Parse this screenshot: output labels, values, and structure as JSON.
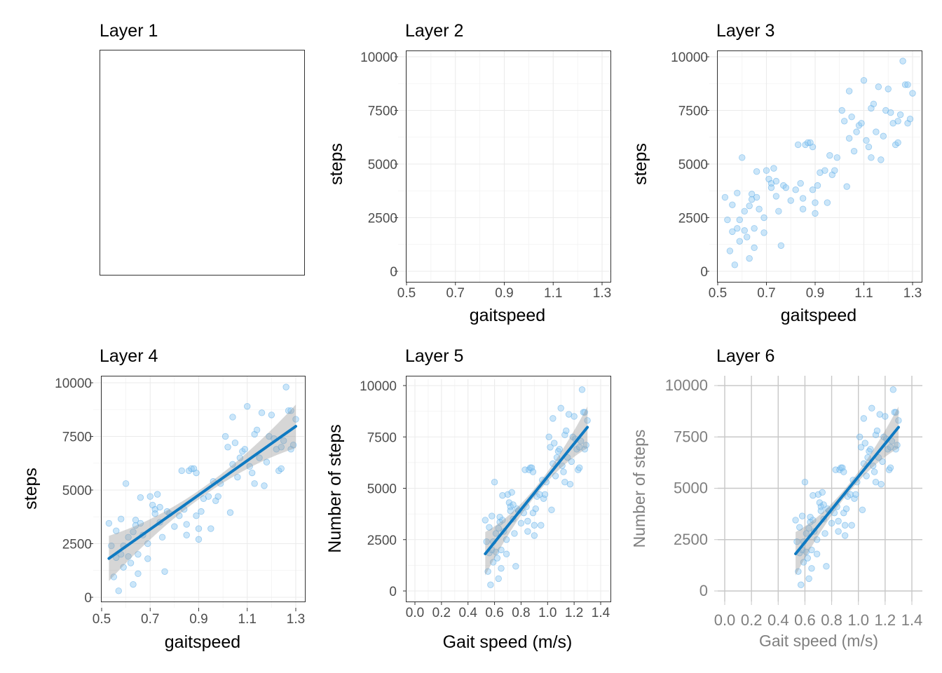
{
  "chart_data": [
    {
      "type": "empty",
      "title": "Layer 1"
    },
    {
      "type": "scatter",
      "title": "Layer 2",
      "xlabel": "gaitspeed",
      "ylabel": "steps",
      "xlim": [
        0.5,
        1.3
      ],
      "ylim": [
        0,
        10000
      ],
      "xticks": [
        "0.5",
        "0.7",
        "0.9",
        "1.1",
        "1.3"
      ],
      "yticks": [
        "0",
        "2500",
        "5000",
        "7500",
        "10000"
      ],
      "show_points": false,
      "show_fit": false,
      "grid": true
    },
    {
      "type": "scatter",
      "title": "Layer 3",
      "xlabel": "gaitspeed",
      "ylabel": "steps",
      "xlim": [
        0.5,
        1.3
      ],
      "ylim": [
        0,
        10000
      ],
      "xticks": [
        "0.5",
        "0.7",
        "0.9",
        "1.1",
        "1.3"
      ],
      "yticks": [
        "0",
        "2500",
        "5000",
        "7500",
        "10000"
      ],
      "show_points": true,
      "show_fit": false,
      "grid": true
    },
    {
      "type": "scatter",
      "title": "Layer 4",
      "xlabel": "gaitspeed",
      "ylabel": "steps",
      "xlim": [
        0.5,
        1.3
      ],
      "ylim": [
        0,
        10000
      ],
      "xticks": [
        "0.5",
        "0.7",
        "0.9",
        "1.1",
        "1.3"
      ],
      "yticks": [
        "0",
        "2500",
        "5000",
        "7500",
        "10000"
      ],
      "show_points": true,
      "show_fit": true,
      "grid": true
    },
    {
      "type": "scatter",
      "title": "Layer 5",
      "xlabel": "Gait speed (m/s)",
      "ylabel": "Number of steps",
      "xlim": [
        0.0,
        1.4
      ],
      "ylim": [
        0,
        10000
      ],
      "xticks": [
        "0.0",
        "0.2",
        "0.4",
        "0.6",
        "0.8",
        "1.0",
        "1.2",
        "1.4"
      ],
      "yticks": [
        "0",
        "2500",
        "5000",
        "7500",
        "10000"
      ],
      "show_points": true,
      "show_fit": true,
      "grid": true
    },
    {
      "type": "scatter",
      "title": "Layer 6",
      "xlabel": "Gait speed (m/s)",
      "ylabel": "Number of steps",
      "xlim": [
        0.0,
        1.4
      ],
      "ylim": [
        0,
        10000
      ],
      "xticks": [
        "0.0",
        "0.2",
        "0.4",
        "0.6",
        "0.8",
        "1.0",
        "1.2",
        "1.4"
      ],
      "yticks": [
        "0",
        "2500",
        "5000",
        "7500",
        "10000"
      ],
      "show_points": true,
      "show_fit": true,
      "grid": true
    }
  ],
  "points": {
    "x": [
      0.53,
      0.54,
      0.55,
      0.56,
      0.56,
      0.57,
      0.58,
      0.58,
      0.59,
      0.59,
      0.6,
      0.61,
      0.61,
      0.62,
      0.63,
      0.63,
      0.64,
      0.64,
      0.65,
      0.65,
      0.66,
      0.66,
      0.67,
      0.69,
      0.69,
      0.7,
      0.71,
      0.72,
      0.72,
      0.73,
      0.74,
      0.74,
      0.75,
      0.76,
      0.77,
      0.78,
      0.8,
      0.82,
      0.83,
      0.84,
      0.85,
      0.85,
      0.86,
      0.87,
      0.88,
      0.89,
      0.89,
      0.9,
      0.9,
      0.91,
      0.92,
      0.94,
      0.95,
      0.96,
      0.97,
      0.98,
      0.99,
      1.01,
      1.02,
      1.03,
      1.04,
      1.04,
      1.05,
      1.06,
      1.07,
      1.08,
      1.09,
      1.1,
      1.11,
      1.12,
      1.13,
      1.13,
      1.14,
      1.15,
      1.16,
      1.17,
      1.18,
      1.19,
      1.2,
      1.21,
      1.22,
      1.23,
      1.24,
      1.24,
      1.25,
      1.26,
      1.27,
      1.28,
      1.28,
      1.29,
      1.3
    ],
    "y": [
      3450,
      2400,
      950,
      1850,
      3100,
      300,
      2000,
      3650,
      2400,
      1400,
      5300,
      1900,
      2800,
      1600,
      3050,
      600,
      3350,
      3600,
      1100,
      2000,
      3450,
      4650,
      2900,
      1800,
      2500,
      4700,
      4300,
      4100,
      3900,
      4800,
      3500,
      4200,
      2800,
      1200,
      4000,
      3900,
      3300,
      3800,
      5900,
      4100,
      3400,
      2900,
      5900,
      6000,
      6000,
      5800,
      3800,
      3200,
      2700,
      4000,
      4600,
      4700,
      3200,
      5400,
      4500,
      4700,
      5300,
      7500,
      7000,
      3950,
      6200,
      8400,
      7200,
      5600,
      6500,
      6800,
      6900,
      8900,
      6100,
      5800,
      7600,
      5300,
      7800,
      6500,
      8600,
      5200,
      6300,
      7500,
      8500,
      7400,
      6900,
      5900,
      7000,
      6000,
      7300,
      9800,
      8700,
      8700,
      6900,
      7100,
      8300
    ]
  },
  "fit": {
    "slope": 8000,
    "intercept": -2430,
    "x_start": 0.53,
    "x_end": 1.3
  }
}
